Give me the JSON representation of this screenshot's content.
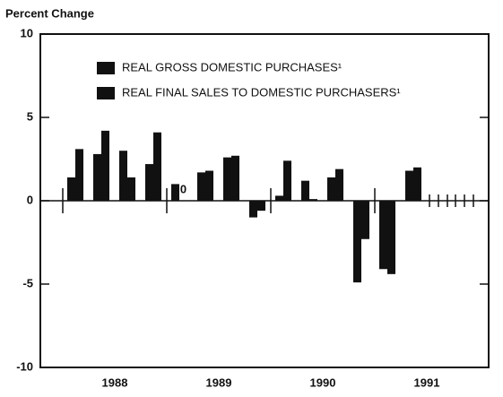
{
  "chart_data": {
    "type": "bar",
    "title": "Percent Change",
    "categories": [
      null,
      null,
      null,
      null,
      null,
      null,
      null,
      null,
      null,
      null,
      null,
      null,
      null,
      null,
      null,
      null
    ],
    "x_group_labels": [
      "1988",
      "1989",
      "1990",
      "1991"
    ],
    "series": [
      {
        "name": "REAL GROSS DOMESTIC PURCHASES¹",
        "color": "#111111",
        "values": [
          1.4,
          2.8,
          3.0,
          2.2,
          1.0,
          1.7,
          2.6,
          -1.0,
          0.3,
          1.2,
          1.4,
          -4.9,
          -4.1,
          1.8,
          null,
          null
        ]
      },
      {
        "name": "REAL FINAL SALES TO DOMESTIC PURCHASERS¹",
        "color": "#111111",
        "values": [
          3.1,
          4.2,
          1.4,
          4.1,
          0,
          1.8,
          2.7,
          -0.6,
          2.4,
          0.1,
          1.9,
          -2.3,
          -4.4,
          2.0,
          null,
          null
        ],
        "value_labels": [
          null,
          null,
          null,
          null,
          "0",
          null,
          null,
          null,
          null,
          null,
          null,
          null,
          null,
          null,
          null,
          null
        ]
      }
    ],
    "ylim": [
      -10,
      10
    ],
    "yticks": [
      -10,
      -5,
      0,
      5,
      10
    ],
    "grid": false
  }
}
